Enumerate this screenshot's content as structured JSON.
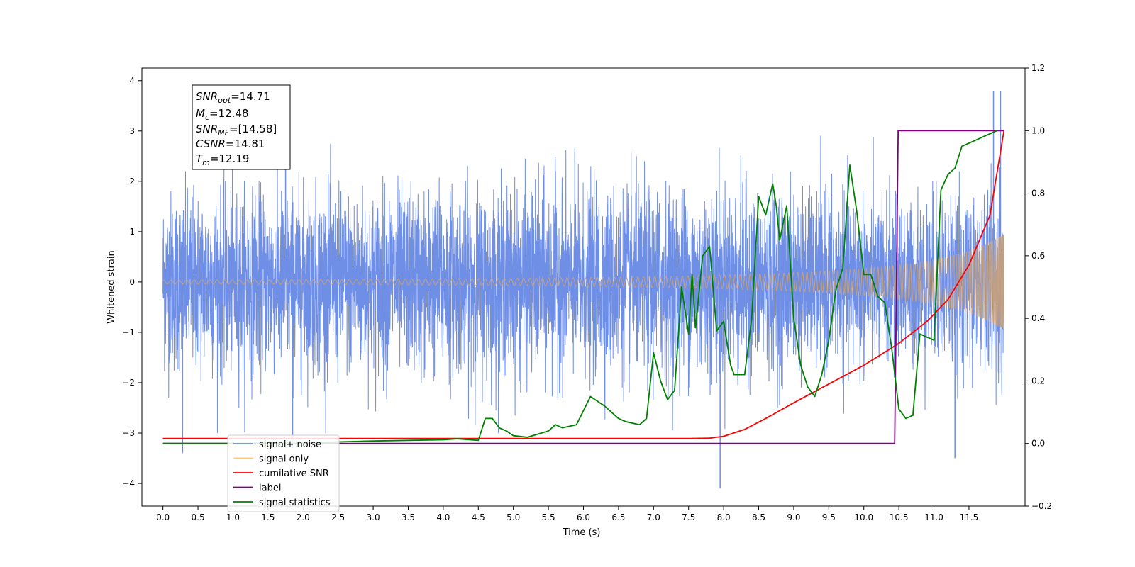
{
  "chart_data": {
    "type": "line",
    "title": "",
    "xlabel": "Time (s)",
    "ylabel": "Whitened strain",
    "x_ticks": [
      0.0,
      0.5,
      1.0,
      1.5,
      2.0,
      2.5,
      3.0,
      3.5,
      4.0,
      4.5,
      5.0,
      5.5,
      6.0,
      6.5,
      7.0,
      7.5,
      8.0,
      8.5,
      9.0,
      9.5,
      10.0,
      10.5,
      11.0,
      11.5
    ],
    "x_tick_labels": [
      "0.0",
      "0.5",
      "1.0",
      "1.5",
      "2.0",
      "2.5",
      "3.0",
      "3.5",
      "4.0",
      "4.5",
      "5.0",
      "5.5",
      "6.0",
      "6.5",
      "7.0",
      "7.5",
      "8.0",
      "8.5",
      "9.0",
      "9.5",
      "10.0",
      "10.5",
      "11.0",
      "11.5"
    ],
    "xlim": [
      -0.3,
      12.3
    ],
    "ylim_left": [
      -4.45,
      4.25
    ],
    "left_ticks": [
      -4,
      -3,
      -2,
      -1,
      0,
      1,
      2,
      3,
      4
    ],
    "left_tick_labels": [
      "−4",
      "−3",
      "−2",
      "−1",
      "0",
      "1",
      "2",
      "3",
      "4"
    ],
    "ylim_right": [
      -0.2,
      1.2
    ],
    "right_ticks": [
      -0.2,
      0.0,
      0.2,
      0.4,
      0.6,
      0.8,
      1.0,
      1.2
    ],
    "right_tick_labels": [
      "−0.2",
      "0.0",
      "0.2",
      "0.4",
      "0.6",
      "0.8",
      "1.0",
      "1.2"
    ],
    "legend_position": "lower-left",
    "colors": {
      "noise": "#6f8ee6",
      "signal": "#c9a27a",
      "cumulative": "#ff0000",
      "label": "#800080",
      "stats": "#008000"
    },
    "series": [
      {
        "name": "signal+ noise",
        "axis": "left",
        "duration": 12.0,
        "envelope_levels": [
          [
            0.0,
            1.4
          ],
          [
            8.0,
            1.45
          ],
          [
            11.0,
            1.2
          ],
          [
            12.0,
            1.3
          ]
        ],
        "spike_extremes": [
          [
            0.28,
            -3.4
          ],
          [
            1.75,
            3.3
          ],
          [
            1.85,
            -3.3
          ],
          [
            7.95,
            -4.1
          ],
          [
            11.3,
            -3.5
          ],
          [
            11.85,
            3.8
          ],
          [
            11.95,
            3.8
          ]
        ]
      },
      {
        "name": "signal only",
        "axis": "left",
        "frequency_start_hz": 9,
        "amplitude_end": 0.97,
        "chirp_time": 12.0
      },
      {
        "name": "cumilative SNR",
        "axis": "right",
        "x": [
          0.0,
          7.5,
          7.8,
          8.0,
          8.3,
          8.6,
          9.0,
          9.5,
          10.0,
          10.5,
          10.9,
          11.2,
          11.5,
          11.8,
          12.0
        ],
        "y": [
          0.016,
          0.016,
          0.017,
          0.023,
          0.045,
          0.08,
          0.13,
          0.19,
          0.25,
          0.32,
          0.39,
          0.46,
          0.57,
          0.73,
          1.0
        ]
      },
      {
        "name": "label",
        "axis": "right",
        "x": [
          0.0,
          10.44,
          10.49,
          12.0
        ],
        "y": [
          0.0,
          0.0,
          1.0,
          1.0
        ]
      },
      {
        "name": "signal statistics",
        "axis": "right",
        "x": [
          0.0,
          1.0,
          2.0,
          2.5,
          3.0,
          3.5,
          4.0,
          4.2,
          4.5,
          4.6,
          4.7,
          4.8,
          4.9,
          5.0,
          5.2,
          5.5,
          5.6,
          5.7,
          5.9,
          6.1,
          6.3,
          6.5,
          6.6,
          6.8,
          6.9,
          7.0,
          7.1,
          7.2,
          7.3,
          7.4,
          7.5,
          7.55,
          7.6,
          7.7,
          7.8,
          7.9,
          8.0,
          8.1,
          8.15,
          8.3,
          8.4,
          8.5,
          8.6,
          8.7,
          8.75,
          8.8,
          8.9,
          9.0,
          9.1,
          9.2,
          9.3,
          9.4,
          9.5,
          9.6,
          9.7,
          9.8,
          9.9,
          10.0,
          10.1,
          10.2,
          10.3,
          10.4,
          10.5,
          10.6,
          10.7,
          10.8,
          11.0,
          11.1,
          11.2,
          11.3,
          11.4,
          11.6,
          11.8,
          11.9
        ],
        "y": [
          0.0,
          0.0,
          0.0,
          0.005,
          0.008,
          0.01,
          0.012,
          0.015,
          0.01,
          0.08,
          0.08,
          0.05,
          0.04,
          0.025,
          0.02,
          0.04,
          0.06,
          0.05,
          0.06,
          0.15,
          0.12,
          0.08,
          0.07,
          0.06,
          0.08,
          0.29,
          0.2,
          0.14,
          0.17,
          0.5,
          0.35,
          0.54,
          0.37,
          0.6,
          0.63,
          0.36,
          0.39,
          0.25,
          0.22,
          0.22,
          0.4,
          0.79,
          0.73,
          0.83,
          0.76,
          0.65,
          0.76,
          0.4,
          0.25,
          0.18,
          0.15,
          0.22,
          0.33,
          0.49,
          0.56,
          0.89,
          0.74,
          0.54,
          0.54,
          0.47,
          0.45,
          0.3,
          0.11,
          0.08,
          0.09,
          0.35,
          0.33,
          0.81,
          0.86,
          0.88,
          0.95,
          0.97,
          0.99,
          1.0
        ]
      }
    ],
    "legend": [
      {
        "key": "noise",
        "label": "signal+ noise"
      },
      {
        "key": "signal",
        "label": "signal only"
      },
      {
        "key": "cumulative",
        "label": "cumilative SNR"
      },
      {
        "key": "label",
        "label": "label"
      },
      {
        "key": "stats",
        "label": "signal statistics"
      }
    ],
    "annotation": [
      {
        "sym": "SNR",
        "sub": "opt",
        "rest": "=14.71"
      },
      {
        "sym": "M",
        "sub": "c",
        "rest": "=12.48"
      },
      {
        "sym": "SNR",
        "sub": "MF",
        "rest": "=[14.58]"
      },
      {
        "sym": "CSNR",
        "sub": "",
        "rest": "=14.81"
      },
      {
        "sym": "T",
        "sub": "m",
        "rest": "=12.19"
      }
    ]
  }
}
